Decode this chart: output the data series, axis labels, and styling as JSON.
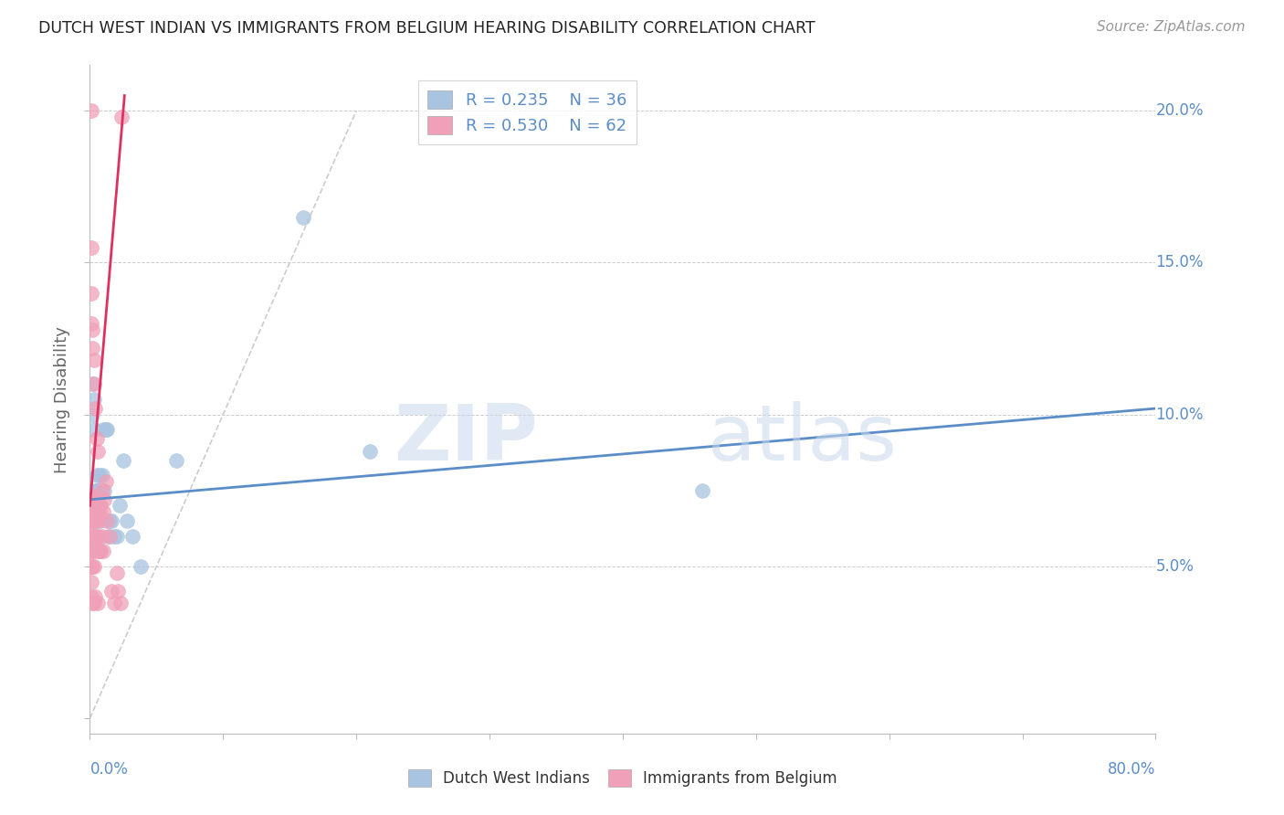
{
  "title": "DUTCH WEST INDIAN VS IMMIGRANTS FROM BELGIUM HEARING DISABILITY CORRELATION CHART",
  "source": "Source: ZipAtlas.com",
  "ylabel": "Hearing Disability",
  "xmin": 0.0,
  "xmax": 0.8,
  "ymin": -0.005,
  "ymax": 0.215,
  "legend_r1": "R = 0.235",
  "legend_n1": "N = 36",
  "legend_r2": "R = 0.530",
  "legend_n2": "N = 62",
  "color_blue": "#A8C4E0",
  "color_pink": "#F0A0B8",
  "color_blue_line": "#5B8DC8",
  "color_pink_line": "#E03060",
  "color_diag_line": "#CCCCCC",
  "watermark_zip": "ZIP",
  "watermark_atlas": "atlas",
  "blue_line_x": [
    0.0,
    0.8
  ],
  "blue_line_y": [
    0.072,
    0.102
  ],
  "pink_line_x": [
    0.0,
    0.026
  ],
  "pink_line_y": [
    0.07,
    0.205
  ],
  "diag_line_x": [
    0.0,
    0.2
  ],
  "diag_line_y": [
    0.0,
    0.2
  ],
  "blue_scatter_x": [
    0.002,
    0.002,
    0.003,
    0.003,
    0.004,
    0.005,
    0.005,
    0.006,
    0.006,
    0.007,
    0.007,
    0.008,
    0.008,
    0.009,
    0.01,
    0.011,
    0.012,
    0.013,
    0.014,
    0.015,
    0.016,
    0.018,
    0.02,
    0.022,
    0.025,
    0.028,
    0.032,
    0.038,
    0.065,
    0.16,
    0.21,
    0.46,
    0.003,
    0.004,
    0.006,
    0.007
  ],
  "blue_scatter_y": [
    0.11,
    0.1,
    0.105,
    0.095,
    0.075,
    0.08,
    0.075,
    0.07,
    0.075,
    0.07,
    0.08,
    0.065,
    0.075,
    0.08,
    0.095,
    0.075,
    0.095,
    0.095,
    0.06,
    0.065,
    0.065,
    0.06,
    0.06,
    0.07,
    0.085,
    0.065,
    0.06,
    0.05,
    0.085,
    0.165,
    0.088,
    0.075,
    0.065,
    0.065,
    0.06,
    0.055
  ],
  "pink_scatter_x": [
    0.0005,
    0.001,
    0.001,
    0.001,
    0.001,
    0.001,
    0.001,
    0.001,
    0.0015,
    0.002,
    0.002,
    0.002,
    0.002,
    0.002,
    0.002,
    0.002,
    0.003,
    0.003,
    0.003,
    0.003,
    0.003,
    0.003,
    0.003,
    0.004,
    0.004,
    0.004,
    0.004,
    0.005,
    0.005,
    0.005,
    0.006,
    0.006,
    0.006,
    0.007,
    0.007,
    0.008,
    0.008,
    0.009,
    0.009,
    0.01,
    0.01,
    0.011,
    0.012,
    0.013,
    0.015,
    0.016,
    0.018,
    0.02,
    0.021,
    0.023,
    0.001,
    0.001,
    0.001,
    0.002,
    0.002,
    0.003,
    0.003,
    0.004,
    0.005,
    0.006,
    0.024,
    0.001
  ],
  "pink_scatter_y": [
    0.07,
    0.068,
    0.065,
    0.06,
    0.055,
    0.05,
    0.045,
    0.04,
    0.065,
    0.07,
    0.068,
    0.065,
    0.06,
    0.055,
    0.05,
    0.038,
    0.073,
    0.07,
    0.065,
    0.06,
    0.055,
    0.05,
    0.038,
    0.07,
    0.065,
    0.06,
    0.04,
    0.072,
    0.068,
    0.055,
    0.065,
    0.06,
    0.038,
    0.068,
    0.055,
    0.07,
    0.055,
    0.075,
    0.06,
    0.068,
    0.055,
    0.072,
    0.078,
    0.065,
    0.06,
    0.042,
    0.038,
    0.048,
    0.042,
    0.038,
    0.155,
    0.14,
    0.13,
    0.128,
    0.122,
    0.118,
    0.11,
    0.102,
    0.092,
    0.088,
    0.198,
    0.2
  ]
}
